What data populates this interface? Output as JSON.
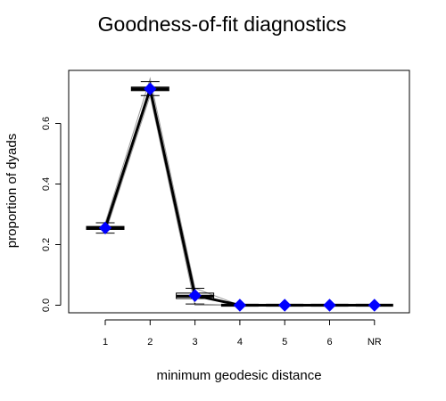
{
  "chart_data": {
    "type": "boxplot",
    "title": "Goodness-of-fit diagnostics",
    "xlabel": "minimum geodesic distance",
    "ylabel": "proportion of dyads",
    "categories": [
      "1",
      "2",
      "3",
      "4",
      "5",
      "6",
      "NR"
    ],
    "y_ticks": [
      "0.0",
      "0.2",
      "0.4",
      "0.6"
    ],
    "ylim": [
      -0.025,
      0.775
    ],
    "grid": false,
    "legend": "none",
    "boxes": [
      {
        "category": "1",
        "whisker_low": 0.238,
        "q1": 0.25,
        "median": 0.255,
        "q3": 0.26,
        "whisker_high": 0.272
      },
      {
        "category": "2",
        "whisker_low": 0.692,
        "q1": 0.708,
        "median": 0.714,
        "q3": 0.72,
        "whisker_high": 0.738
      },
      {
        "category": "3",
        "whisker_low": 0.004,
        "q1": 0.022,
        "median": 0.03,
        "q3": 0.04,
        "whisker_high": 0.056
      },
      {
        "category": "4",
        "whisker_low": 0.0,
        "q1": 0.0,
        "median": 0.0,
        "q3": 0.0,
        "whisker_high": 0.0
      },
      {
        "category": "5",
        "whisker_low": 0.0,
        "q1": 0.0,
        "median": 0.0,
        "q3": 0.0,
        "whisker_high": 0.0
      },
      {
        "category": "6",
        "whisker_low": 0.0,
        "q1": 0.0,
        "median": 0.0,
        "q3": 0.0,
        "whisker_high": 0.0
      },
      {
        "category": "NR",
        "whisker_low": 0.0,
        "q1": 0.0,
        "median": 0.0,
        "q3": 0.0,
        "whisker_high": 0.0
      }
    ],
    "observed": [
      0.255,
      0.714,
      0.032,
      0.0,
      0.0,
      0.0,
      0.0
    ],
    "sim_lines": {
      "upper": [
        0.272,
        0.748,
        0.056
      ],
      "lower": [
        0.238,
        0.692,
        0.004
      ],
      "mid_low": [
        0.25,
        0.708,
        0.0
      ]
    },
    "colors": {
      "observed": "#0000ff",
      "box": "#000000",
      "sim_line": "#9a9a9a"
    }
  }
}
